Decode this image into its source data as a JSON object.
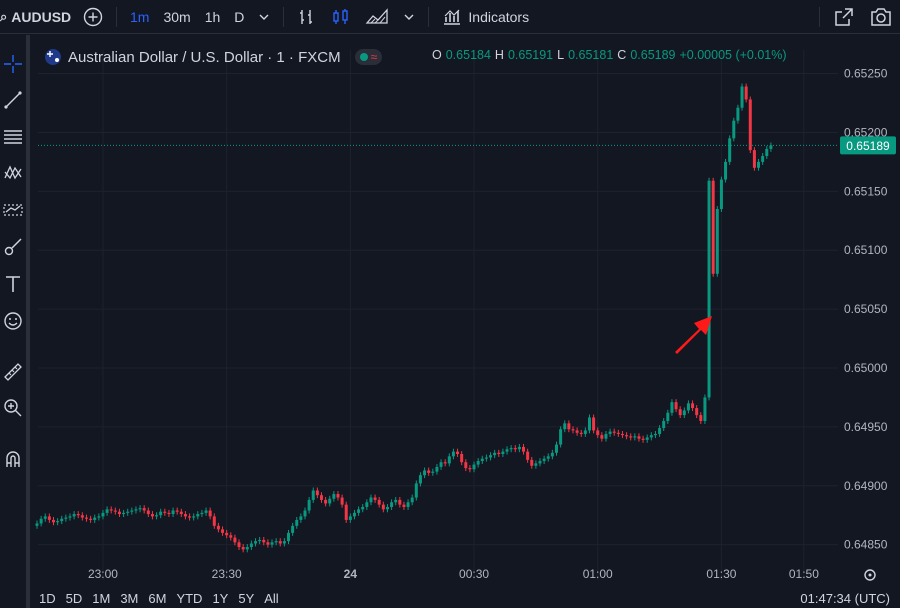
{
  "toolbar": {
    "symbol": "AUDUSD",
    "intervals": [
      "1m",
      "30m",
      "1h",
      "D"
    ],
    "active_interval": "1m",
    "indicators_label": "Indicators"
  },
  "legend": {
    "title": "Australian Dollar / U.S. Dollar · 1 · FXCM",
    "ohlc": [
      {
        "k": "O",
        "v": "0.65184"
      },
      {
        "k": "H",
        "v": "0.65191"
      },
      {
        "k": "L",
        "v": "0.65181"
      },
      {
        "k": "C",
        "v": "0.65189"
      }
    ],
    "change": "+0.00005 (+0.01%)"
  },
  "colors": {
    "up": "#089981",
    "down": "#f23645",
    "bg": "#131722",
    "grid": "#1e222d",
    "arrow": "#ff1a1a"
  },
  "chart_data": {
    "type": "candlestick",
    "symbol": "AUDUSD",
    "interval": "1m",
    "ylim": [
      0.6482,
      0.6527
    ],
    "y_ticks": [
      0.6485,
      0.649,
      0.6495,
      0.65,
      0.6505,
      0.651,
      0.6515,
      0.652,
      0.6525
    ],
    "y_tick_labels": [
      "0.64850",
      "0.64900",
      "0.64950",
      "0.65000",
      "0.65050",
      "0.65100",
      "0.65150",
      "0.65200",
      "0.65250"
    ],
    "x_ticks": [
      {
        "label": "23:00",
        "minute": 16
      },
      {
        "label": "23:30",
        "minute": 46
      },
      {
        "label": "24",
        "minute": 76
      },
      {
        "label": "00:30",
        "minute": 106
      },
      {
        "label": "01:00",
        "minute": 136
      },
      {
        "label": "01:30",
        "minute": 166
      },
      {
        "label": "01:50",
        "minute": 186
      }
    ],
    "last_price": "0.65189",
    "last_price_value": 0.65189,
    "closes": [
      0.64868,
      0.64872,
      0.64874,
      0.64871,
      0.64869,
      0.6487,
      0.64872,
      0.64873,
      0.64874,
      0.64876,
      0.64875,
      0.64873,
      0.64872,
      0.64871,
      0.64873,
      0.64874,
      0.64877,
      0.6488,
      0.64879,
      0.64878,
      0.64876,
      0.64877,
      0.64878,
      0.64879,
      0.6488,
      0.64881,
      0.64879,
      0.64876,
      0.64874,
      0.64875,
      0.64878,
      0.64877,
      0.64876,
      0.64879,
      0.64878,
      0.64876,
      0.64874,
      0.64873,
      0.64874,
      0.64876,
      0.64877,
      0.64879,
      0.64874,
      0.64866,
      0.64863,
      0.6486,
      0.64858,
      0.64856,
      0.64852,
      0.64848,
      0.64846,
      0.64848,
      0.64851,
      0.64853,
      0.64854,
      0.64852,
      0.6485,
      0.64852,
      0.64853,
      0.64851,
      0.64853,
      0.6486,
      0.64866,
      0.64871,
      0.64874,
      0.64879,
      0.64888,
      0.64896,
      0.64892,
      0.64888,
      0.64885,
      0.64889,
      0.64893,
      0.6489,
      0.64884,
      0.64871,
      0.64874,
      0.64877,
      0.6488,
      0.64882,
      0.64886,
      0.6489,
      0.64888,
      0.64884,
      0.6488,
      0.64882,
      0.64886,
      0.64888,
      0.64884,
      0.64882,
      0.64886,
      0.6489,
      0.64902,
      0.64909,
      0.64913,
      0.64911,
      0.64912,
      0.64916,
      0.6492,
      0.64919,
      0.64925,
      0.64929,
      0.64927,
      0.6492,
      0.64915,
      0.64914,
      0.64918,
      0.64921,
      0.64923,
      0.64924,
      0.64926,
      0.64928,
      0.64927,
      0.64929,
      0.64931,
      0.64932,
      0.64931,
      0.64933,
      0.64929,
      0.64922,
      0.64917,
      0.64919,
      0.64921,
      0.64923,
      0.64925,
      0.64928,
      0.64935,
      0.64948,
      0.64953,
      0.64948,
      0.64947,
      0.64945,
      0.64944,
      0.64947,
      0.64958,
      0.64947,
      0.64943,
      0.6494,
      0.64944,
      0.64946,
      0.64945,
      0.64944,
      0.64943,
      0.64942,
      0.64941,
      0.64942,
      0.6494,
      0.64939,
      0.64941,
      0.64943,
      0.64944,
      0.64949,
      0.64955,
      0.64962,
      0.64971,
      0.64965,
      0.6496,
      0.64964,
      0.6497,
      0.64966,
      0.6496,
      0.64955,
      0.64975,
      0.65159,
      0.6508,
      0.65135,
      0.6516,
      0.65175,
      0.65195,
      0.6521,
      0.65221,
      0.65239,
      0.65228,
      0.65185,
      0.6517,
      0.65175,
      0.6518,
      0.65186,
      0.65189
    ]
  }
}
